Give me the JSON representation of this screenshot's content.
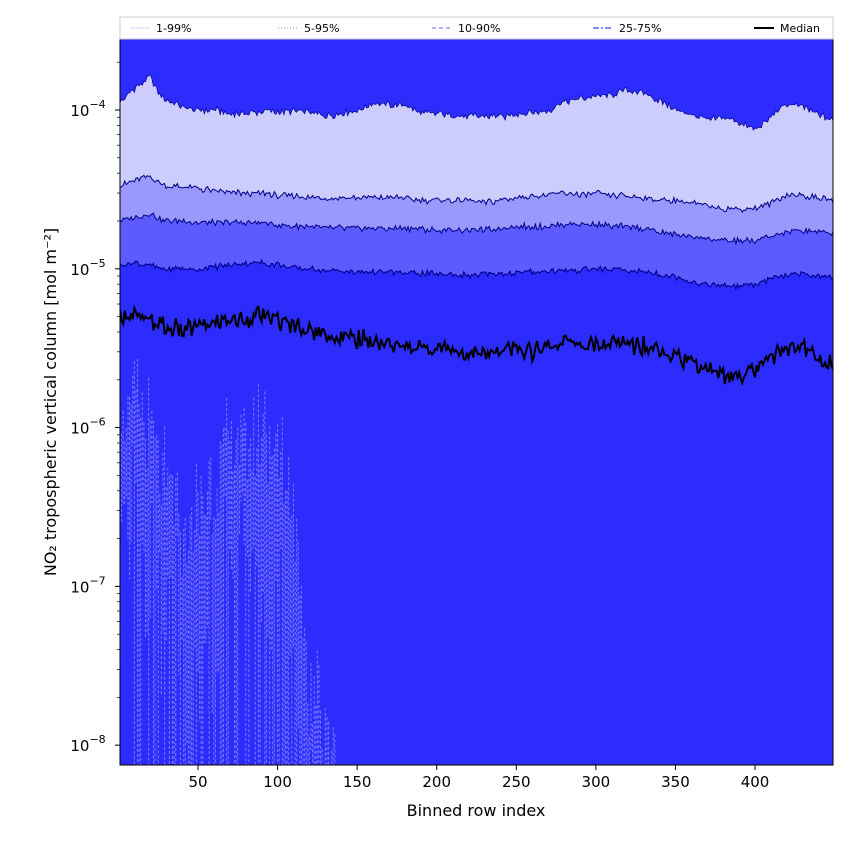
{
  "chart_data": {
    "type": "area",
    "xlabel": "Binned row index",
    "ylabel": "NO₂ tropospheric vertical column [mol m⁻²]",
    "xlim": [
      1,
      449
    ],
    "ylim": [
      7.5e-09,
      0.00028
    ],
    "yscale": "log",
    "xticks": [
      50,
      100,
      150,
      200,
      250,
      300,
      350,
      400
    ],
    "xtick_labels": [
      "50",
      "100",
      "150",
      "200",
      "250",
      "300",
      "350",
      "400"
    ],
    "yticks": [
      {
        "value": 1e-08,
        "base": "10",
        "exp": "−8"
      },
      {
        "value": 1e-07,
        "base": "10",
        "exp": "−7"
      },
      {
        "value": 1e-06,
        "base": "10",
        "exp": "−6"
      },
      {
        "value": 1e-05,
        "base": "10",
        "exp": "−5"
      },
      {
        "value": 0.0001,
        "base": "10",
        "exp": "−4"
      }
    ],
    "legend": {
      "placement": "top",
      "entries": [
        {
          "label": "1-99%",
          "color": "#dcdcf8",
          "dash": "solid"
        },
        {
          "label": "5-95%",
          "color": "#a8a8f0",
          "dash": "dotted"
        },
        {
          "label": "10-90%",
          "color": "#8080ff",
          "dash": "dashed"
        },
        {
          "label": "25-75%",
          "color": "#4040ff",
          "dash": "dashdot"
        },
        {
          "label": "Median",
          "color": "#000000",
          "dash": "solid"
        }
      ]
    },
    "colors": {
      "band_1_99": "#cccdfd",
      "band_5_95": "#9898fd",
      "band_10_90": "#5b5bff",
      "band_25_75": "#2d2cff",
      "median": "#000000"
    },
    "x": [
      1,
      10,
      20,
      25,
      30,
      40,
      50,
      60,
      70,
      80,
      90,
      100,
      110,
      120,
      130,
      140,
      150,
      160,
      170,
      180,
      190,
      200,
      210,
      220,
      230,
      240,
      250,
      260,
      270,
      280,
      290,
      300,
      310,
      320,
      330,
      340,
      350,
      360,
      370,
      380,
      390,
      400,
      410,
      420,
      430,
      440,
      449
    ],
    "series": [
      {
        "name": "1-99% upper",
        "values": [
          0.000112,
          0.000135,
          0.000162,
          0.00013,
          0.000115,
          0.000105,
          0.0001,
          0.0001,
          9.5e-05,
          9.5e-05,
          9.8e-05,
          9.8e-05,
          9.8e-05,
          9.6e-05,
          9.2e-05,
          9.5e-05,
          9.9e-05,
          0.00011,
          0.000108,
          0.000107,
          9.6e-05,
          9.5e-05,
          9.2e-05,
          9.1e-05,
          9.3e-05,
          9e-05,
          9.4e-05,
          9.6e-05,
          9.9e-05,
          0.000112,
          0.000118,
          0.000122,
          0.000125,
          0.000132,
          0.000128,
          0.000115,
          0.0001,
          9.3e-05,
          8.6e-05,
          9e-05,
          8.3e-05,
          7.5e-05,
          9e-05,
          0.00011,
          0.000105,
          9.3e-05,
          8.7e-05
        ]
      },
      {
        "name": "5-95% upper",
        "values": [
          3.3e-05,
          3.6e-05,
          3.8e-05,
          3.5e-05,
          3.3e-05,
          3.3e-05,
          3.2e-05,
          3.1e-05,
          3e-05,
          3e-05,
          3e-05,
          2.9e-05,
          2.9e-05,
          2.8e-05,
          2.8e-05,
          2.8e-05,
          2.8e-05,
          2.8e-05,
          2.8e-05,
          2.8e-05,
          2.7e-05,
          2.7e-05,
          2.7e-05,
          2.7e-05,
          2.6e-05,
          2.7e-05,
          2.8e-05,
          2.9e-05,
          2.9e-05,
          3e-05,
          2.9e-05,
          3e-05,
          2.9e-05,
          2.9e-05,
          2.8e-05,
          2.7e-05,
          2.7e-05,
          2.6e-05,
          2.5e-05,
          2.4e-05,
          2.4e-05,
          2.4e-05,
          2.6e-05,
          2.9e-05,
          2.9e-05,
          2.8e-05,
          2.7e-05
        ]
      },
      {
        "name": "10-90% upper",
        "values": [
          2e-05,
          2.1e-05,
          2.2e-05,
          2.1e-05,
          2e-05,
          2e-05,
          1.95e-05,
          1.95e-05,
          1.95e-05,
          1.95e-05,
          1.95e-05,
          1.9e-05,
          1.85e-05,
          1.85e-05,
          1.8e-05,
          1.8e-05,
          1.8e-05,
          1.8e-05,
          1.8e-05,
          1.8e-05,
          1.78e-05,
          1.75e-05,
          1.75e-05,
          1.75e-05,
          1.75e-05,
          1.8e-05,
          1.85e-05,
          1.85e-05,
          1.85e-05,
          1.9e-05,
          1.9e-05,
          1.9e-05,
          1.85e-05,
          1.85e-05,
          1.8e-05,
          1.7e-05,
          1.65e-05,
          1.6e-05,
          1.55e-05,
          1.5e-05,
          1.5e-05,
          1.5e-05,
          1.6e-05,
          1.7e-05,
          1.75e-05,
          1.7e-05,
          1.7e-05
        ]
      },
      {
        "name": "25-75% upper",
        "values": [
          1.05e-05,
          1.1e-05,
          1.05e-05,
          1e-05,
          1e-05,
          1e-05,
          1e-05,
          1.03e-05,
          1.05e-05,
          1.08e-05,
          1.1e-05,
          1.06e-05,
          1.02e-05,
          1e-05,
          9.8e-06,
          9.6e-06,
          9.5e-06,
          9.6e-06,
          9.5e-06,
          9.3e-06,
          9.4e-06,
          9.3e-06,
          9.2e-06,
          9.1e-06,
          9.2e-06,
          9.3e-06,
          9.5e-06,
          9.5e-06,
          9.6e-06,
          9.7e-06,
          9.8e-06,
          1e-05,
          9.8e-06,
          9.7e-06,
          9.6e-06,
          9.3e-06,
          8.9e-06,
          8.3e-06,
          8e-06,
          7.8e-06,
          7.8e-06,
          8e-06,
          8.6e-06,
          9.1e-06,
          9.3e-06,
          9e-06,
          8.8e-06
        ]
      },
      {
        "name": "Median",
        "values": [
          5e-06,
          5.1e-06,
          4.6e-06,
          4.5e-06,
          4.3e-06,
          4.1e-06,
          4.4e-06,
          4.5e-06,
          4.7e-06,
          4.9e-06,
          5e-06,
          4.7e-06,
          4.4e-06,
          4.1e-06,
          3.8e-06,
          3.8e-06,
          3.6e-06,
          3.5e-06,
          3.4e-06,
          3.2e-06,
          3.2e-06,
          3.2e-06,
          3.2e-06,
          3e-06,
          2.9e-06,
          3e-06,
          3.1e-06,
          3e-06,
          3.2e-06,
          3.5e-06,
          3.3e-06,
          3.3e-06,
          3.3e-06,
          3.4e-06,
          3.3e-06,
          3.2e-06,
          2.9e-06,
          2.6e-06,
          2.3e-06,
          2.2e-06,
          2.1e-06,
          2.3e-06,
          2.8e-06,
          3.1e-06,
          3.3e-06,
          2.6e-06,
          2.5e-06
        ]
      },
      {
        "name": "1-99% lower spikes",
        "values": [
          1e-06,
          1.3e-06,
          9e-07,
          7e-07,
          4e-07,
          2e-07,
          3e-07,
          5e-07,
          7.5e-07,
          8e-07,
          1.2e-06,
          6.5e-07,
          3e-07,
          2.5e-08,
          1.5e-08,
          7.5e-09,
          7.5e-09,
          7.5e-09,
          7.5e-09,
          7.5e-09,
          7.5e-09,
          7.5e-09,
          7.5e-09,
          7.5e-09,
          7.5e-09,
          7.5e-09,
          7.5e-09,
          7.5e-09,
          7.5e-09,
          7.5e-09,
          7.5e-09,
          7.5e-09,
          7.5e-09,
          7.5e-09,
          7.5e-09,
          7.5e-09,
          7.5e-09,
          7.5e-09,
          7.5e-09,
          7.5e-09,
          7.5e-09,
          7.5e-09,
          7.5e-09,
          7.5e-09,
          7.5e-09,
          7.5e-09,
          7.5e-09
        ]
      }
    ]
  }
}
